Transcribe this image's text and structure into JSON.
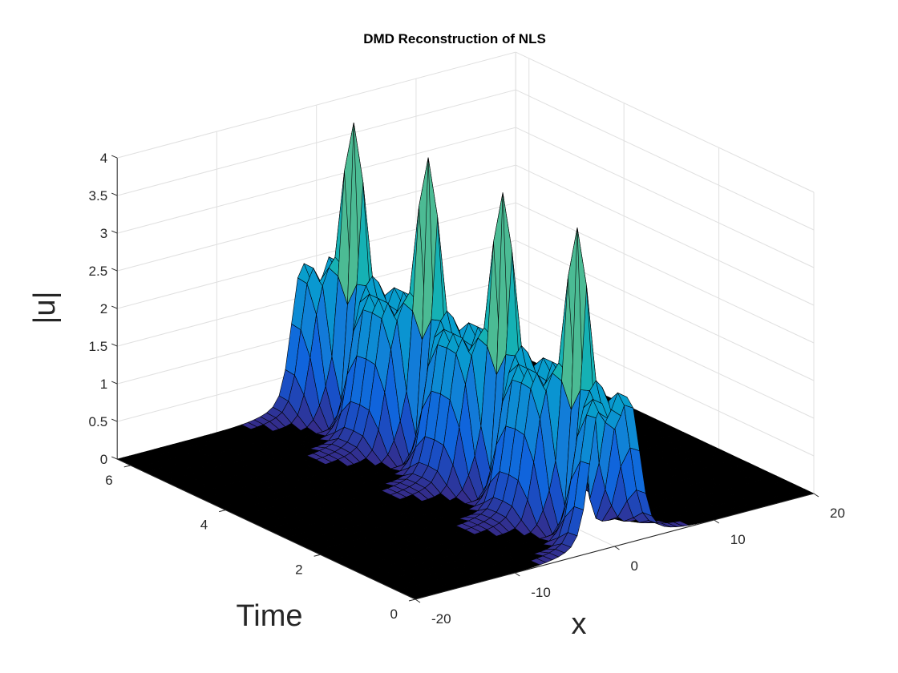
{
  "chart_data": {
    "type": "surface",
    "title": "DMD Reconstruction of NLS",
    "xlabel": "x",
    "ylabel": "Time",
    "zlabel": "|u|",
    "xlim": [
      -20,
      20
    ],
    "ylim": [
      0,
      6.28
    ],
    "zlim": [
      0,
      4
    ],
    "xticks": [
      -20,
      -10,
      0,
      10,
      20
    ],
    "xtick_labels": [
      "-20",
      "-10",
      "0",
      "10",
      "20"
    ],
    "yticks": [
      0,
      2,
      4,
      6
    ],
    "ytick_labels": [
      "0",
      "2",
      "4",
      "6"
    ],
    "zticks": [
      0,
      0.5,
      1,
      1.5,
      2,
      2.5,
      3,
      3.5,
      4
    ],
    "ztick_labels": [
      "0",
      "0.5",
      "1",
      "1.5",
      "2",
      "2.5",
      "3",
      "3.5",
      "4"
    ],
    "grid": true,
    "colormap": "parula",
    "surface": {
      "description_values": {
        "baseline": 0,
        "peak_amplitude": 4,
        "trough_amplitude": 1.0,
        "edge_amplitude": 2.4,
        "peak_count": 4,
        "peak_times": [
          0.785,
          2.356,
          3.927,
          5.498
        ],
        "center_x": 0
      }
    }
  }
}
